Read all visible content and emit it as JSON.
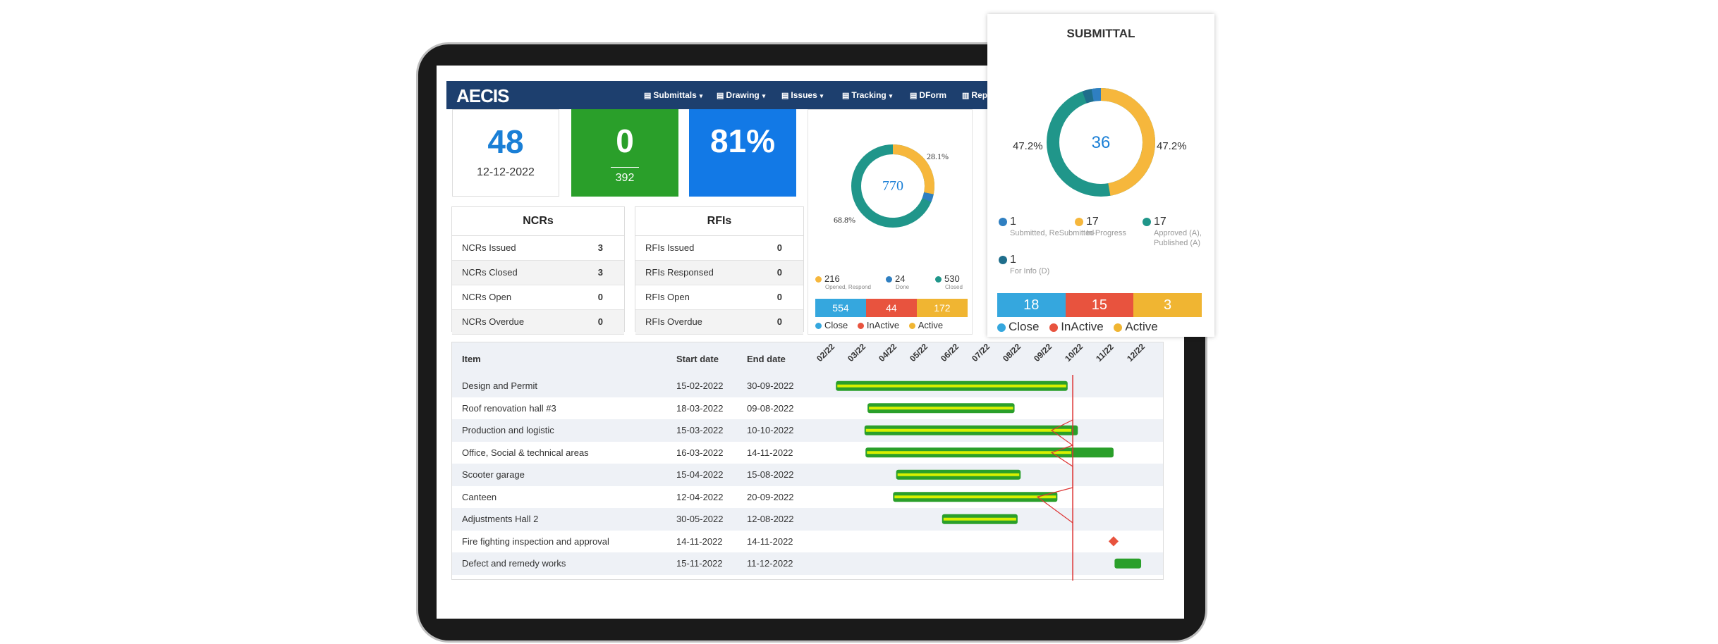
{
  "nav": {
    "logo": "AECIS",
    "items": [
      {
        "label": "Submittals",
        "caret": true
      },
      {
        "label": "Drawing",
        "caret": true
      },
      {
        "label": "Issues",
        "caret": true
      },
      {
        "label": "Tracking",
        "caret": true
      },
      {
        "label": "DForm",
        "caret": false
      },
      {
        "label": "Rep",
        "caret": false
      }
    ]
  },
  "stats": {
    "card1": {
      "value": "48",
      "date": "12-12-2022"
    },
    "card2": {
      "value": "0",
      "sub": "392"
    },
    "card3": {
      "value": "81%"
    }
  },
  "ncrs": {
    "title": "NCRs",
    "rows": [
      {
        "label": "NCRs Issued",
        "value": "3"
      },
      {
        "label": "NCRs Closed",
        "value": "3"
      },
      {
        "label": "NCRs Open",
        "value": "0"
      },
      {
        "label": "NCRs Overdue",
        "value": "0"
      }
    ]
  },
  "rfis": {
    "title": "RFIs",
    "rows": [
      {
        "label": "RFIs Issued",
        "value": "0"
      },
      {
        "label": "RFIs Responsed",
        "value": "0"
      },
      {
        "label": "RFIs Open",
        "value": "0"
      },
      {
        "label": "RFIs Overdue",
        "value": "0"
      }
    ]
  },
  "issues_donut": {
    "center": "770",
    "pct_a": "28.1%",
    "pct_b": "68.8%",
    "legend": [
      {
        "value": "216",
        "label": "Opened, Respond",
        "color": "#f6b73c"
      },
      {
        "value": "24",
        "label": "Done",
        "color": "#2f7fc1"
      },
      {
        "value": "530",
        "label": "Closed",
        "color": "#20968a"
      }
    ],
    "bars": [
      {
        "value": "554",
        "color": "#35a7de",
        "fraction": 0.4
      },
      {
        "value": "44",
        "color": "#e8533e",
        "fraction": 0.3
      },
      {
        "value": "172",
        "color": "#f0b532",
        "fraction": 0.3
      }
    ],
    "bar_legend": [
      "Close",
      "InActive",
      "Active"
    ]
  },
  "submittal": {
    "title": "SUBMITTAL",
    "center": "36",
    "pct_left": "47.2%",
    "pct_right": "47.2%",
    "legend": [
      {
        "value": "1",
        "label": "Submitted, ReSubmitted",
        "color": "#2f7fc1"
      },
      {
        "value": "17",
        "label": "In-Progress",
        "color": "#f6b73c"
      },
      {
        "value": "17",
        "label": "Approved (A), Published (A)",
        "color": "#20968a"
      },
      {
        "value": "1",
        "label": "For Info (D)",
        "color": "#1f6e8c"
      }
    ],
    "bars": [
      {
        "value": "18",
        "color": "#35a7de",
        "fraction": 0.333
      },
      {
        "value": "15",
        "color": "#e8533e",
        "fraction": 0.333
      },
      {
        "value": "3",
        "color": "#f0b532",
        "fraction": 0.334
      }
    ],
    "bar_legend": [
      "Close",
      "InActive",
      "Active"
    ]
  },
  "gantt": {
    "headers": {
      "item": "Item",
      "start": "Start date",
      "end": "End date"
    },
    "months": [
      "02/22",
      "03/22",
      "04/22",
      "05/22",
      "06/22",
      "07/22",
      "08/22",
      "09/22",
      "10/22",
      "11/22",
      "12/22"
    ],
    "rows": [
      {
        "item": "Design and Permit",
        "start": "15-02-2022",
        "end": "30-09-2022"
      },
      {
        "item": "Roof renovation hall #3",
        "start": "18-03-2022",
        "end": "09-08-2022"
      },
      {
        "item": "Production and logistic",
        "start": "15-03-2022",
        "end": "10-10-2022"
      },
      {
        "item": "Office, Social & technical areas",
        "start": "16-03-2022",
        "end": "14-11-2022"
      },
      {
        "item": "Scooter garage",
        "start": "15-04-2022",
        "end": "15-08-2022"
      },
      {
        "item": "Canteen",
        "start": "12-04-2022",
        "end": "20-09-2022"
      },
      {
        "item": "Adjustments Hall 2",
        "start": "30-05-2022",
        "end": "12-08-2022"
      },
      {
        "item": "Fire fighting inspection and approval",
        "start": "14-11-2022",
        "end": "14-11-2022"
      },
      {
        "item": "Defect and remedy works",
        "start": "15-11-2022",
        "end": "11-12-2022"
      }
    ]
  }
}
